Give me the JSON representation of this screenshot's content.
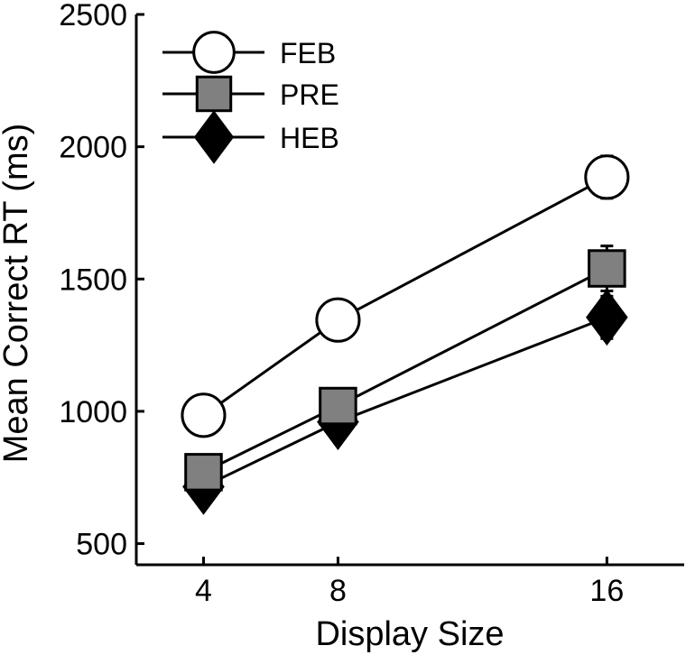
{
  "chart_data": {
    "type": "line",
    "title": "",
    "xlabel": "Display Size",
    "ylabel": "Mean Correct RT (ms)",
    "x": [
      4,
      8,
      16
    ],
    "xticks": [
      "4",
      "8",
      "16"
    ],
    "xlim": [
      2,
      18.3
    ],
    "ylim": [
      420,
      2500
    ],
    "yticks": [
      "500",
      "1000",
      "1500",
      "2000",
      "2500"
    ],
    "grid": false,
    "legend_position": "top-left",
    "series": [
      {
        "name": "FEB",
        "marker": "circle",
        "fill": "#ffffff",
        "values": [
          985,
          1345,
          1885
        ],
        "error": [
          25,
          50,
          80
        ]
      },
      {
        "name": "PRE",
        "marker": "square",
        "fill": "#808080",
        "values": [
          770,
          1020,
          1540
        ],
        "error": [
          20,
          60,
          85
        ]
      },
      {
        "name": "HEB",
        "marker": "diamond",
        "fill": "#000000",
        "values": [
          715,
          960,
          1355
        ],
        "error": [
          20,
          45,
          80
        ]
      }
    ]
  }
}
